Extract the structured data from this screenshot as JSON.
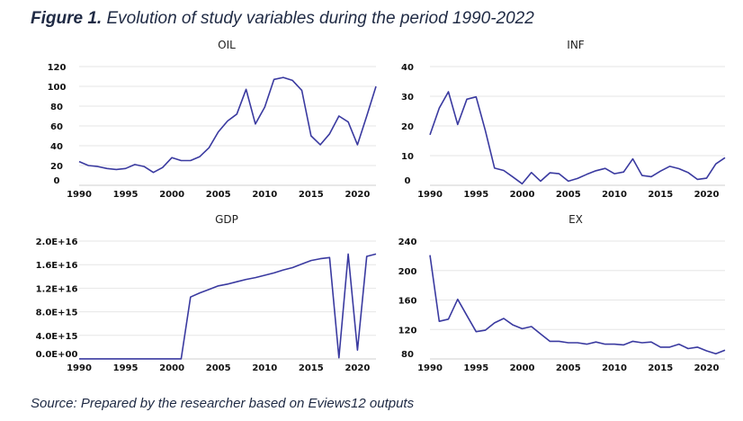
{
  "figure": {
    "label": "Figure 1.",
    "caption": "Evolution of study variables during the period 1990-2022",
    "source": "Source: Prepared by the researcher based on Eviews12 outputs"
  },
  "colors": {
    "line": "#3a3aa0",
    "text": "#1f2a44"
  },
  "chart_data": [
    {
      "id": "oil",
      "type": "line",
      "title": "OIL",
      "x": [
        1990,
        1991,
        1992,
        1993,
        1994,
        1995,
        1996,
        1997,
        1998,
        1999,
        2000,
        2001,
        2002,
        2003,
        2004,
        2005,
        2006,
        2007,
        2008,
        2009,
        2010,
        2011,
        2012,
        2013,
        2014,
        2015,
        2016,
        2017,
        2018,
        2019,
        2020,
        2021,
        2022
      ],
      "values": [
        24,
        20,
        19,
        17,
        16,
        17,
        21,
        19,
        13,
        18,
        28,
        25,
        25,
        29,
        38,
        54,
        65,
        72,
        97,
        62,
        79,
        107,
        109,
        106,
        96,
        50,
        41,
        52,
        70,
        64,
        41,
        70,
        100
      ],
      "ylim": [
        0,
        120
      ],
      "yticks": [
        0,
        20,
        40,
        60,
        80,
        100,
        120
      ],
      "ytick_labels": [
        "0",
        "20",
        "40",
        "60",
        "80",
        "100",
        "120"
      ],
      "xticks": [
        1990,
        1995,
        2000,
        2005,
        2010,
        2015,
        2020
      ],
      "xtick_labels": [
        "1990",
        "1995",
        "2000",
        "2005",
        "2010",
        "2015",
        "2020"
      ]
    },
    {
      "id": "inf",
      "type": "line",
      "title": "INF",
      "x": [
        1990,
        1991,
        1992,
        1993,
        1994,
        1995,
        1996,
        1997,
        1998,
        1999,
        2000,
        2001,
        2002,
        2003,
        2004,
        2005,
        2006,
        2007,
        2008,
        2009,
        2010,
        2011,
        2012,
        2013,
        2014,
        2015,
        2016,
        2017,
        2018,
        2019,
        2020,
        2021,
        2022
      ],
      "values": [
        17,
        26,
        31.5,
        20.5,
        29,
        29.8,
        18.5,
        5.8,
        5,
        2.8,
        0.5,
        4.3,
        1.4,
        4.2,
        3.9,
        1.4,
        2.3,
        3.7,
        4.9,
        5.7,
        3.9,
        4.5,
        8.9,
        3.3,
        2.9,
        4.8,
        6.4,
        5.6,
        4.3,
        2,
        2.4,
        7.2,
        9.3
      ],
      "ylim": [
        0,
        40
      ],
      "yticks": [
        0,
        10,
        20,
        30,
        40
      ],
      "ytick_labels": [
        "0",
        "10",
        "20",
        "30",
        "40"
      ],
      "xticks": [
        1990,
        1995,
        2000,
        2005,
        2010,
        2015,
        2020
      ],
      "xtick_labels": [
        "1990",
        "1995",
        "2000",
        "2005",
        "2010",
        "2015",
        "2020"
      ]
    },
    {
      "id": "gdp",
      "type": "line",
      "title": "GDP",
      "x": [
        1990,
        1991,
        1992,
        1993,
        1994,
        1995,
        1996,
        1997,
        1998,
        1999,
        2000,
        2001,
        2002,
        2003,
        2004,
        2005,
        2006,
        2007,
        2008,
        2009,
        2010,
        2011,
        2012,
        2013,
        2014,
        2015,
        2016,
        2017,
        2018,
        2019,
        2020,
        2021,
        2022
      ],
      "values": [
        10000000000000.0,
        10000000000000.0,
        10000000000000.0,
        10000000000000.0,
        10000000000000.0,
        10000000000000.0,
        10000000000000.0,
        10000000000000.0,
        10000000000000.0,
        10000000000000.0,
        10000000000000.0,
        10000000000000.0,
        1.05e+16,
        1.12e+16,
        1.18e+16,
        1.24e+16,
        1.27e+16,
        1.31e+16,
        1.35e+16,
        1.38e+16,
        1.42e+16,
        1.46e+16,
        1.51e+16,
        1.55e+16,
        1.61e+16,
        1.67e+16,
        1.7e+16,
        1.72e+16,
        200000000000000.0,
        1.78e+16,
        1500000000000000.0,
        1.74e+16,
        1.78e+16
      ],
      "ylim": [
        0,
        2e+16
      ],
      "yticks": [
        0,
        4000000000000000.0,
        8000000000000000.0,
        1.2e+16,
        1.6e+16,
        2e+16
      ],
      "ytick_labels": [
        "0.0E+00",
        "4.0E+15",
        "8.0E+15",
        "1.2E+16",
        "1.6E+16",
        "2.0E+16"
      ],
      "xticks": [
        1990,
        1995,
        2000,
        2005,
        2010,
        2015,
        2020
      ],
      "xtick_labels": [
        "1990",
        "1995",
        "2000",
        "2005",
        "2010",
        "2015",
        "2020"
      ]
    },
    {
      "id": "ex",
      "type": "line",
      "title": "EX",
      "x": [
        1990,
        1991,
        1992,
        1993,
        1994,
        1995,
        1996,
        1997,
        1998,
        1999,
        2000,
        2001,
        2002,
        2003,
        2004,
        2005,
        2006,
        2007,
        2008,
        2009,
        2010,
        2011,
        2012,
        2013,
        2014,
        2015,
        2016,
        2017,
        2018,
        2019,
        2020,
        2021,
        2022
      ],
      "values": [
        221,
        131,
        134,
        161,
        139,
        117,
        119,
        129,
        135,
        126,
        121,
        124,
        114,
        104,
        104,
        102,
        102,
        100,
        103,
        100,
        100,
        99,
        104,
        102,
        103,
        96,
        96,
        100,
        94,
        96,
        91,
        87,
        92
      ],
      "ylim": [
        80,
        240
      ],
      "yticks": [
        80,
        120,
        160,
        200,
        240
      ],
      "ytick_labels": [
        "80",
        "120",
        "160",
        "200",
        "240"
      ],
      "xticks": [
        1990,
        1995,
        2000,
        2005,
        2010,
        2015,
        2020
      ],
      "xtick_labels": [
        "1990",
        "1995",
        "2000",
        "2005",
        "2010",
        "2015",
        "2020"
      ]
    }
  ]
}
